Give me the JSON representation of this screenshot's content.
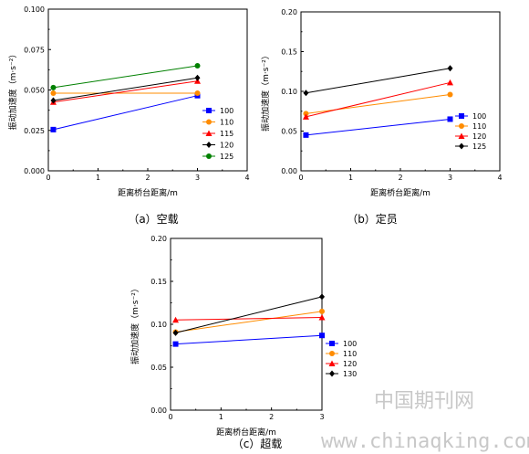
{
  "colors": {
    "s100": "#0000ff",
    "s110": "#ff8c00",
    "s115": "#ff0000",
    "s120": "#000000",
    "s125": "#008000"
  },
  "watermark": {
    "line1": "中国期刊网",
    "line2": "www.chinaqking.com"
  },
  "chart_data": [
    {
      "id": "a",
      "type": "line",
      "caption": "（a）空载",
      "xlabel": "距离桥台距离/m",
      "ylabel": "振动加速度（m·s⁻²）",
      "xlim": [
        0,
        4
      ],
      "ylim": [
        0,
        0.1
      ],
      "xticks": [
        "0",
        "1",
        "2",
        "3",
        "4"
      ],
      "yticks": [
        "0.000",
        "0.025",
        "0.050",
        "0.075",
        "0.100"
      ],
      "x": [
        0.1,
        3
      ],
      "legend_position": "right",
      "series": [
        {
          "name": "100",
          "marker": "square",
          "color": "#0000ff",
          "values": [
            0.0255,
            0.0465
          ]
        },
        {
          "name": "110",
          "marker": "circle",
          "color": "#ff8c00",
          "values": [
            0.048,
            0.048
          ]
        },
        {
          "name": "115",
          "marker": "triangle",
          "color": "#ff0000",
          "values": [
            0.0425,
            0.0555
          ]
        },
        {
          "name": "120",
          "marker": "diamond",
          "color": "#000000",
          "values": [
            0.0435,
            0.0575
          ]
        },
        {
          "name": "125",
          "marker": "circle",
          "color": "#008000",
          "values": [
            0.0515,
            0.065
          ]
        }
      ]
    },
    {
      "id": "b",
      "type": "line",
      "caption": "（b）定员",
      "xlabel": "距离桥台距离/m",
      "ylabel": "振动加速度（m·s⁻²）",
      "xlim": [
        0,
        4
      ],
      "ylim": [
        0,
        0.2
      ],
      "xticks": [
        "0",
        "1",
        "2",
        "3",
        "4"
      ],
      "yticks": [
        "0.00",
        "0.05",
        "0.10",
        "0.15",
        "0.20"
      ],
      "x": [
        0.1,
        3
      ],
      "legend_position": "right",
      "series": [
        {
          "name": "100",
          "marker": "square",
          "color": "#0000ff",
          "values": [
            0.045,
            0.065
          ]
        },
        {
          "name": "110",
          "marker": "circle",
          "color": "#ff8c00",
          "values": [
            0.072,
            0.096
          ]
        },
        {
          "name": "120",
          "marker": "triangle",
          "color": "#ff0000",
          "values": [
            0.068,
            0.111
          ]
        },
        {
          "name": "125",
          "marker": "diamond",
          "color": "#000000",
          "values": [
            0.098,
            0.129
          ]
        }
      ]
    },
    {
      "id": "c",
      "type": "line",
      "caption": "（c）超载",
      "xlabel": "距离桥台距离/m",
      "ylabel": "振动加速度（m·s⁻²）",
      "xlim": [
        0,
        3
      ],
      "ylim": [
        0,
        0.2
      ],
      "xticks": [
        "0",
        "1",
        "2",
        "3"
      ],
      "yticks": [
        "0.00",
        "0.05",
        "0.10",
        "0.15",
        "0.20"
      ],
      "x": [
        0.1,
        3
      ],
      "legend_position": "right",
      "series": [
        {
          "name": "100",
          "marker": "square",
          "color": "#0000ff",
          "values": [
            0.077,
            0.087
          ]
        },
        {
          "name": "110",
          "marker": "circle",
          "color": "#ff8c00",
          "values": [
            0.091,
            0.115
          ]
        },
        {
          "name": "120",
          "marker": "triangle",
          "color": "#ff0000",
          "values": [
            0.105,
            0.108
          ]
        },
        {
          "name": "130",
          "marker": "diamond",
          "color": "#000000",
          "values": [
            0.09,
            0.132
          ]
        }
      ]
    }
  ]
}
